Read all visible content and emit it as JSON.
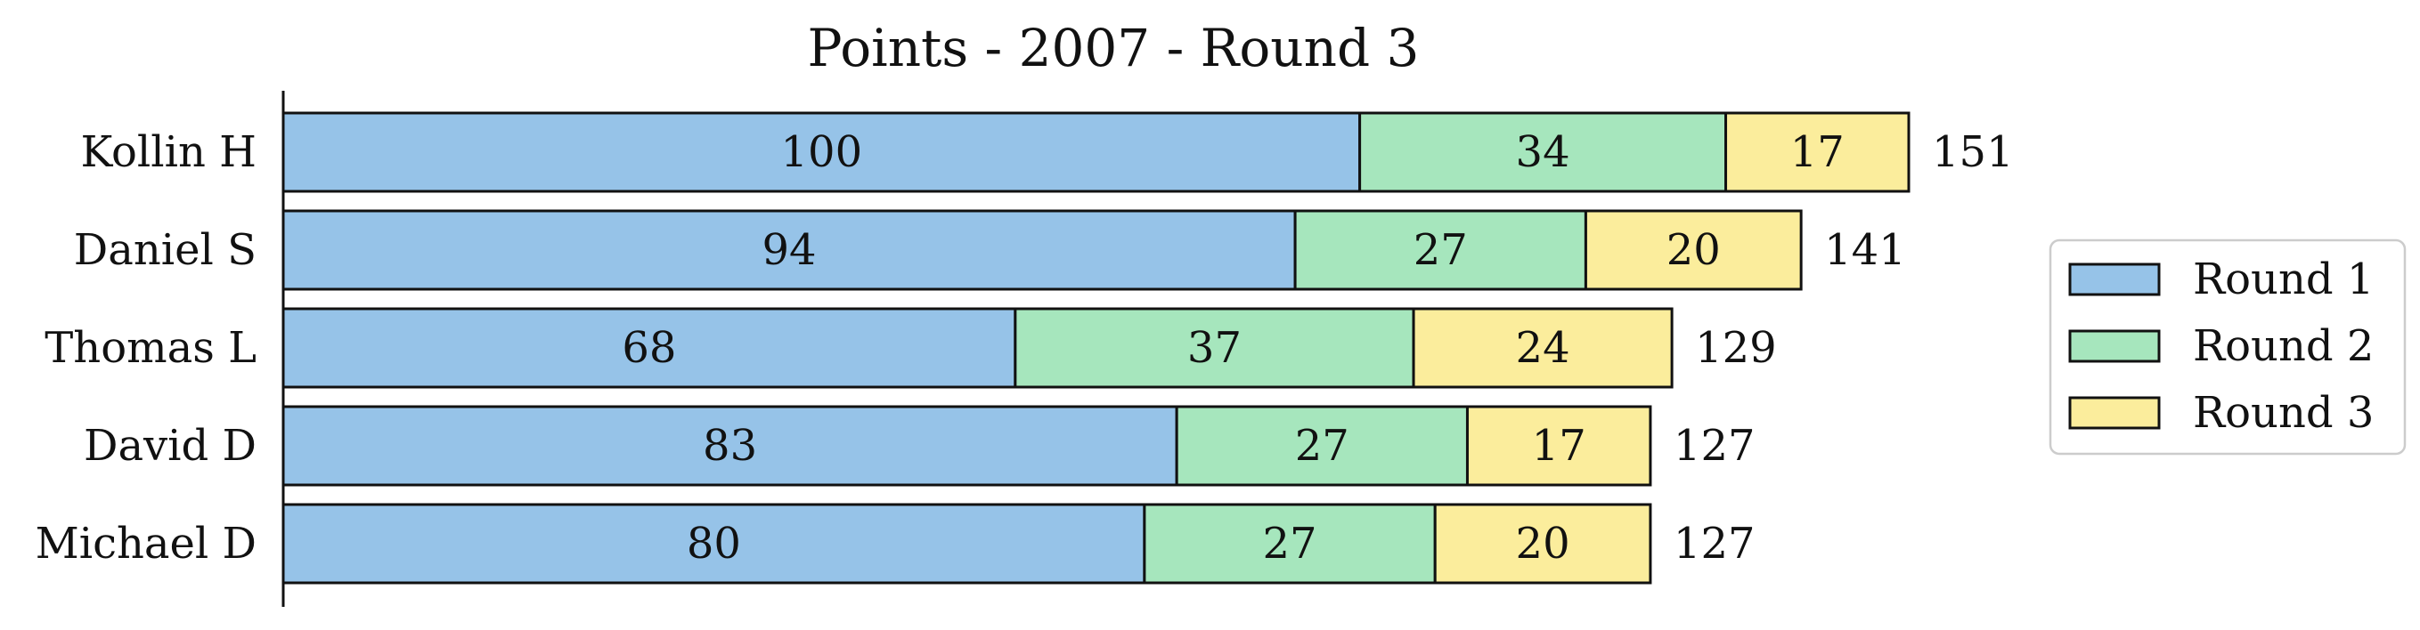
{
  "chart_data": {
    "type": "bar",
    "orientation": "horizontal",
    "stacked": true,
    "title": "Points - 2007 - Round 3",
    "xlabel": "",
    "ylabel": "",
    "categories": [
      "Kollin H",
      "Daniel S",
      "Thomas L",
      "David D",
      "Michael D"
    ],
    "series": [
      {
        "name": "Round 1",
        "color": "#96c3e8",
        "values": [
          100,
          94,
          68,
          83,
          80
        ]
      },
      {
        "name": "Round 2",
        "color": "#a6e6bd",
        "values": [
          34,
          27,
          37,
          27,
          27
        ]
      },
      {
        "name": "Round 3",
        "color": "#fbed9c",
        "values": [
          17,
          20,
          24,
          17,
          20
        ]
      }
    ],
    "totals": [
      151,
      141,
      129,
      127,
      127
    ],
    "xlim": [
      0,
      151
    ],
    "show_x_axis": false,
    "grid": false,
    "data_labels": true,
    "legend": {
      "position": "right"
    }
  }
}
